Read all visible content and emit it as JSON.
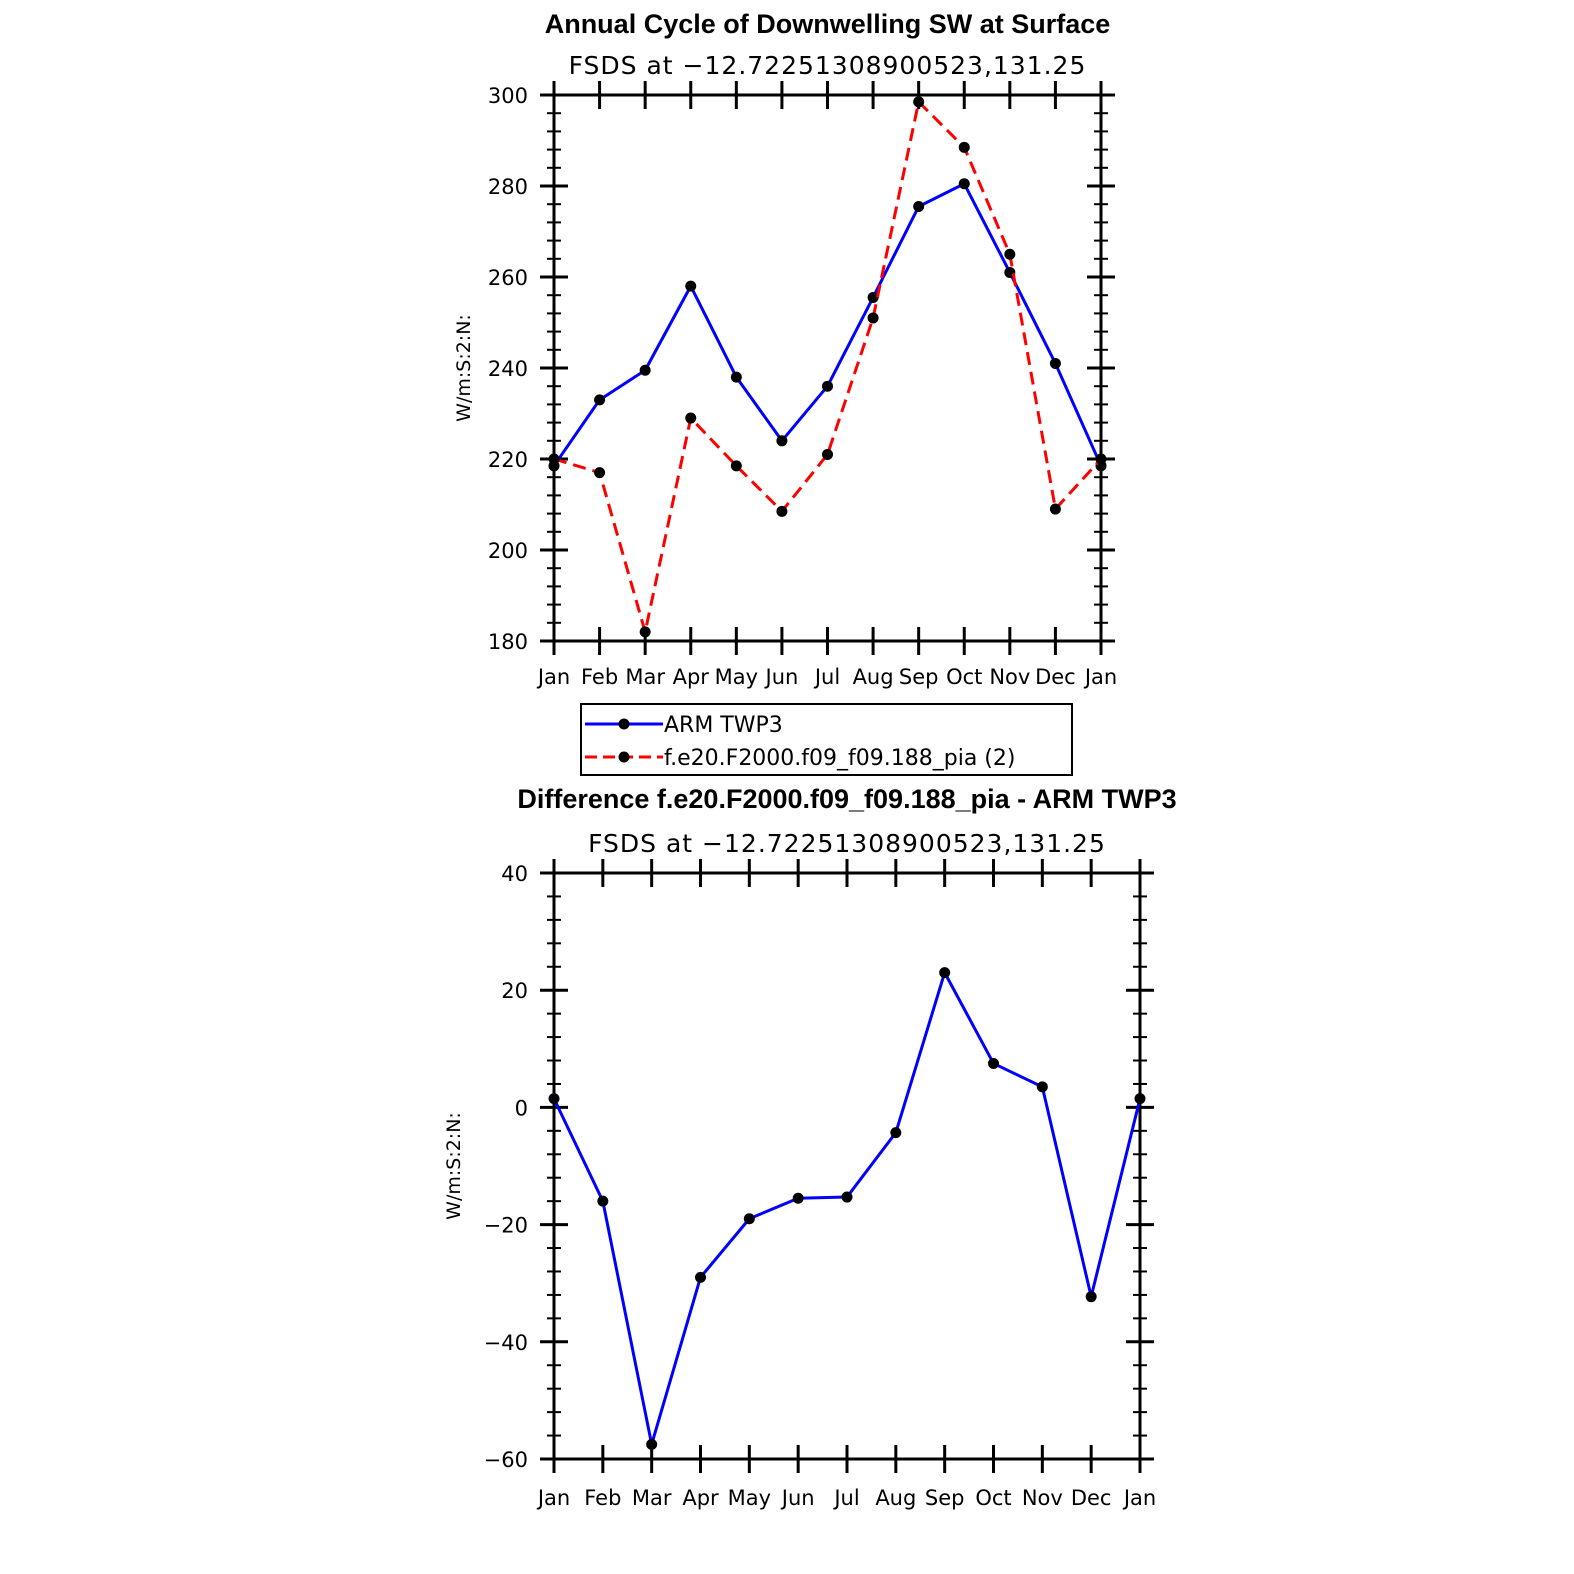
{
  "chart_data": [
    {
      "type": "line",
      "title": "Annual Cycle of Downwelling SW at Surface",
      "subtitle": "FSDS at −12.72251308900523,131.25",
      "ylabel": "W/m:S:2:N:",
      "xlabel": "",
      "categories": [
        "Jan",
        "Feb",
        "Mar",
        "Apr",
        "May",
        "Jun",
        "Jul",
        "Aug",
        "Sep",
        "Oct",
        "Nov",
        "Dec",
        "Jan"
      ],
      "ylim": [
        180,
        300
      ],
      "yticks": [
        180,
        200,
        220,
        240,
        260,
        280,
        300
      ],
      "ytick_labels": [
        "180",
        "200",
        "220",
        "240",
        "260",
        "280",
        "300"
      ],
      "series": [
        {
          "name": "ARM TWP3",
          "color": "#0000ff",
          "style": "solid",
          "values": [
            218.5,
            233,
            239.5,
            258,
            238,
            224,
            236,
            255.5,
            275.5,
            280.5,
            261,
            241,
            218.5
          ]
        },
        {
          "name": "f.e20.F2000.f09_f09.188_pia (2)",
          "color": "#ff0000",
          "style": "dashed",
          "values": [
            220,
            217,
            182,
            229,
            218.5,
            208.5,
            221,
            251,
            298.5,
            288.5,
            265,
            209,
            220
          ]
        }
      ],
      "legend": "bottom-center"
    },
    {
      "type": "line",
      "title": "Difference f.e20.F2000.f09_f09.188_pia - ARM TWP3",
      "subtitle": "FSDS at −12.72251308900523,131.25",
      "ylabel": "W/m:S:2:N:",
      "xlabel": "",
      "categories": [
        "Jan",
        "Feb",
        "Mar",
        "Apr",
        "May",
        "Jun",
        "Jul",
        "Aug",
        "Sep",
        "Oct",
        "Nov",
        "Dec",
        "Jan"
      ],
      "ylim": [
        -60,
        40
      ],
      "yticks": [
        -60,
        -40,
        -20,
        0,
        20,
        40
      ],
      "ytick_labels": [
        "−60",
        "−40",
        "−20",
        "0",
        "20",
        "40"
      ],
      "series": [
        {
          "color": "#0000ff",
          "style": "solid",
          "values": [
            1.5,
            -16,
            -57.5,
            -29,
            -19,
            -15.5,
            -15.3,
            -4.3,
            23,
            7.5,
            3.5,
            -32.3,
            1.5
          ]
        }
      ]
    }
  ]
}
